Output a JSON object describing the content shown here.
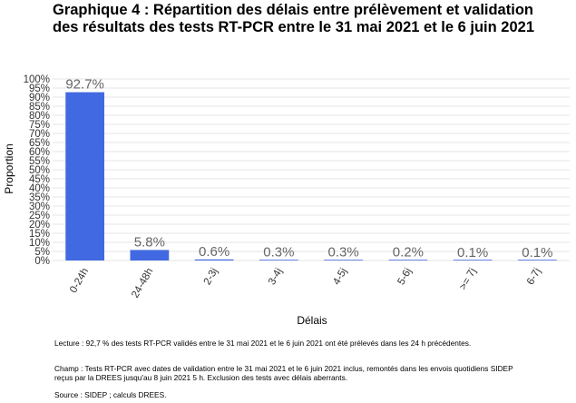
{
  "title_line1": "Graphique 4 : Répartition des délais entre prélèvement et validation",
  "title_line2": "des résultats des tests RT-PCR entre le 31 mai 2021 et le 6 juin 2021",
  "notes": {
    "lecture": "Lecture : 92,7 % des tests RT-PCR validés entre le 31 mai 2021 et le 6 juin 2021 ont été prélevés dans les 24 h précédentes.",
    "champ_line1": "Champ : Tests RT-PCR avec dates de validation entre le 31 mai 2021 et le 6 juin 2021 inclus, remontés dans les envois quotidiens SIDEP",
    "champ_line2": "reçus par la DREES jusqu'au 8 juin 2021 5 h. Exclusion des tests avec délais aberrants.",
    "source": "Source : SIDEP ; calculs DREES."
  },
  "chart_data": {
    "type": "bar",
    "categories": [
      "0-24h",
      "24-48h",
      "2-3j",
      "3-4j",
      "4-5j",
      "5-6j",
      ">= 7j",
      "6-7j"
    ],
    "values": [
      92.7,
      5.8,
      0.6,
      0.3,
      0.3,
      0.2,
      0.1,
      0.1
    ],
    "data_labels": [
      "92.7%",
      "5.8%",
      "0.6%",
      "0.3%",
      "0.3%",
      "0.2%",
      "0.1%",
      "0.1%"
    ],
    "xlabel": "Délais",
    "ylabel": "Proportion",
    "ylim": [
      0,
      100
    ],
    "yticks": [
      0,
      5,
      10,
      15,
      20,
      25,
      30,
      35,
      40,
      45,
      50,
      55,
      60,
      65,
      70,
      75,
      80,
      85,
      90,
      95,
      100
    ],
    "ytick_labels": [
      "0%",
      "5%",
      "10%",
      "15%",
      "20%",
      "25%",
      "30%",
      "35%",
      "40%",
      "45%",
      "50%",
      "55%",
      "60%",
      "65%",
      "70%",
      "75%",
      "80%",
      "85%",
      "90%",
      "95%",
      "100%"
    ],
    "grid": true,
    "legend": "none",
    "bar_color": "#4169e1",
    "grid_color": "#dddddd",
    "label_color": "#666666"
  }
}
